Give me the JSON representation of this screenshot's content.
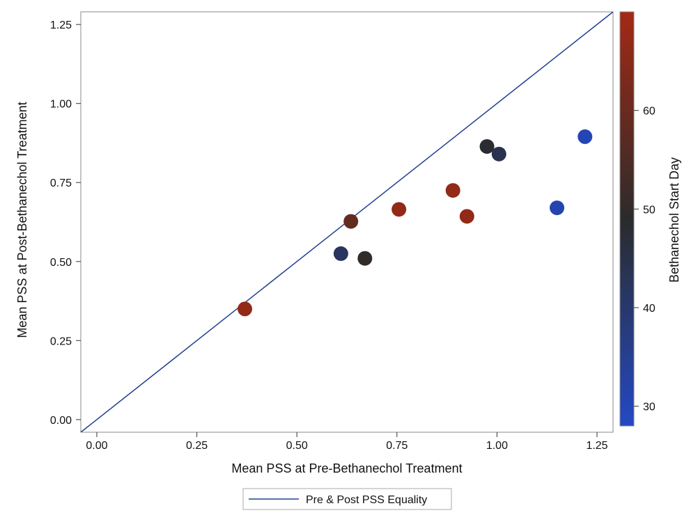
{
  "chart_data": {
    "type": "scatter",
    "xlabel": "Mean PSS at Pre-Bethanechol Treatment",
    "ylabel": "Mean PSS at Post-Bethanechol Treatment",
    "xlim": [
      -0.04,
      1.29
    ],
    "ylim": [
      -0.04,
      1.29
    ],
    "xticks": [
      "0.00",
      "0.25",
      "0.50",
      "0.75",
      "1.00",
      "1.25"
    ],
    "yticks": [
      "0.00",
      "0.25",
      "0.50",
      "0.75",
      "1.00",
      "1.25"
    ],
    "grid": false,
    "points": [
      {
        "x": 0.37,
        "y": 0.35,
        "start_day": 67
      },
      {
        "x": 0.61,
        "y": 0.525,
        "start_day": 42
      },
      {
        "x": 0.635,
        "y": 0.627,
        "start_day": 59
      },
      {
        "x": 0.67,
        "y": 0.51,
        "start_day": 50
      },
      {
        "x": 0.755,
        "y": 0.665,
        "start_day": 67
      },
      {
        "x": 0.89,
        "y": 0.725,
        "start_day": 67
      },
      {
        "x": 0.925,
        "y": 0.643,
        "start_day": 67
      },
      {
        "x": 0.975,
        "y": 0.864,
        "start_day": 48
      },
      {
        "x": 1.005,
        "y": 0.84,
        "start_day": 44
      },
      {
        "x": 1.15,
        "y": 0.67,
        "start_day": 31
      },
      {
        "x": 1.22,
        "y": 0.895,
        "start_day": 30
      }
    ],
    "reference_line": {
      "label": "Pre & Post PSS Equality",
      "slope": 1,
      "intercept": 0,
      "color": "#1f3f8f"
    },
    "colorbar": {
      "label": "Bethanechol Start Day",
      "range": [
        28,
        70
      ],
      "ticks": [
        "30",
        "40",
        "50",
        "60"
      ],
      "colors": {
        "low": "#2349c4",
        "mid": "#2b2b2b",
        "high": "#a32a14"
      }
    },
    "legend_position": "bottom"
  }
}
